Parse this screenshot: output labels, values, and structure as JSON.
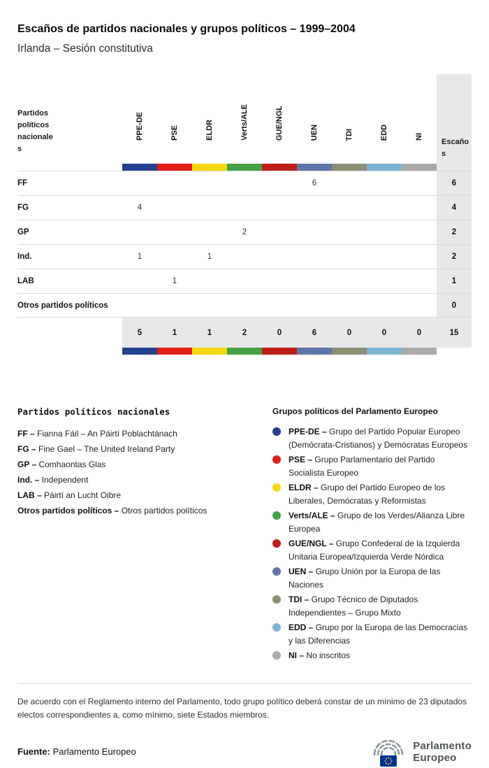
{
  "header": {
    "title": "Escaños de partidos nacionales y grupos políticos – 1999–2004",
    "subtitle": "Irlanda – Sesión constitutiva"
  },
  "table": {
    "corner_label": "Partidos políticos nacionales",
    "seats_label": "Escaños",
    "groups": [
      {
        "id": "PPE-DE",
        "color": "#24418f"
      },
      {
        "id": "PSE",
        "color": "#e41e17"
      },
      {
        "id": "ELDR",
        "color": "#f5d90f"
      },
      {
        "id": "Verts/ALE",
        "color": "#44a049"
      },
      {
        "id": "GUE/NGL",
        "color": "#bf1d17"
      },
      {
        "id": "UEN",
        "color": "#5d76a9"
      },
      {
        "id": "TDI",
        "color": "#8b9170"
      },
      {
        "id": "EDD",
        "color": "#7fb3d5"
      },
      {
        "id": "NI",
        "color": "#a9aaa9"
      }
    ]
  },
  "chart_data": {
    "type": "table",
    "title": "Escaños de partidos nacionales y grupos políticos – 1999–2004",
    "subtitle": "Irlanda – Sesión constitutiva",
    "columns": [
      "PPE-DE",
      "PSE",
      "ELDR",
      "Verts/ALE",
      "GUE/NGL",
      "UEN",
      "TDI",
      "EDD",
      "NI",
      "Escaños"
    ],
    "rows": [
      {
        "party": "FF",
        "seats_by_group": {
          "UEN": 6
        },
        "total": 6
      },
      {
        "party": "FG",
        "seats_by_group": {
          "PPE-DE": 4
        },
        "total": 4
      },
      {
        "party": "GP",
        "seats_by_group": {
          "Verts/ALE": 2
        },
        "total": 2
      },
      {
        "party": "Ind.",
        "seats_by_group": {
          "PPE-DE": 1,
          "ELDR": 1
        },
        "total": 2
      },
      {
        "party": "LAB",
        "seats_by_group": {
          "PSE": 1
        },
        "total": 1
      },
      {
        "party": "Otros partidos políticos",
        "seats_by_group": {},
        "total": 0
      }
    ],
    "column_totals": [
      5,
      1,
      1,
      2,
      0,
      6,
      0,
      0,
      0
    ],
    "grand_total": 15
  },
  "legend_parties": {
    "title": "Partidos políticos nacionales",
    "items": [
      {
        "abbr": "FF",
        "name": "Fianna Fáil – An Páirtí Poblachtánach"
      },
      {
        "abbr": "FG",
        "name": "Fine Gael – The United Ireland Party"
      },
      {
        "abbr": "GP",
        "name": "Comhaontas Glas"
      },
      {
        "abbr": "Ind.",
        "name": "Independent"
      },
      {
        "abbr": "LAB",
        "name": "Páirtí an Lucht Oibre"
      },
      {
        "abbr": "Otros partidos políticos",
        "name": "Otros partidos políticos"
      }
    ]
  },
  "legend_groups": {
    "title": "Grupos políticos del Parlamento Europeo",
    "items": [
      {
        "abbr": "PPE-DE",
        "desc": "Grupo del Partido Popular Europeo (Demócrata-Cristianos) y Demócratas Europeos"
      },
      {
        "abbr": "PSE",
        "desc": "Grupo Parlamentario del Partido Socialista Europeo"
      },
      {
        "abbr": "ELDR",
        "desc": "Grupo del Partido Europeo de los Liberales, Demócratas y Reformistas"
      },
      {
        "abbr": "Verts/ALE",
        "desc": "Grupo de los Verdes/Alianza Libre Europea"
      },
      {
        "abbr": "GUE/NGL",
        "desc": "Grupo Confederal de la Izquierda Unitaria Europea/Izquierda Verde Nórdica"
      },
      {
        "abbr": "UEN",
        "desc": "Grupo Unión por la Europa de las Naciones"
      },
      {
        "abbr": "TDI",
        "desc": "Grupo Técnico de Diputados Independientes – Grupo Mixto"
      },
      {
        "abbr": "EDD",
        "desc": "Grupo por la Europa de las Democracias y las Diferencias"
      },
      {
        "abbr": "NI",
        "desc": "No inscritos"
      }
    ]
  },
  "note": "De acuerdo con el Reglamento interno del Parlamento, todo grupo político deberá constar de un mínimo de 23 diputados electos correspondientes a, como mínimo, siete Estados miembros.",
  "footer": {
    "source_label": "Fuente:",
    "source_value": "Parlamento Europeo",
    "logo_line1": "Parlamento",
    "logo_line2": "Europeo"
  }
}
